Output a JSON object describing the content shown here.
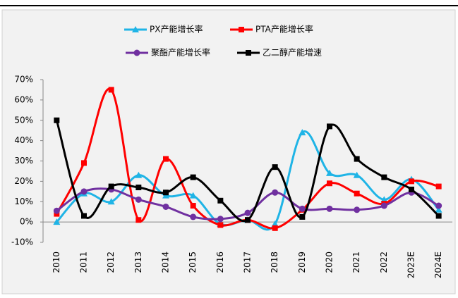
{
  "chart_data": {
    "type": "line",
    "categories": [
      "2010",
      "2011",
      "2012",
      "2013",
      "2014",
      "2015",
      "2016",
      "2017",
      "2018",
      "2019",
      "2020",
      "2021",
      "2022",
      "2023E",
      "2024E"
    ],
    "series": [
      {
        "name": "PX产能增长率",
        "color": "#1fb4e6",
        "marker": "triangle",
        "values": [
          0,
          14,
          10,
          23,
          13,
          13,
          -1,
          1,
          -1,
          44,
          24,
          23,
          11,
          21,
          6
        ]
      },
      {
        "name": "PTA产能增长率",
        "color": "#ff0000",
        "marker": "square",
        "values": [
          4,
          29,
          65,
          1,
          31,
          8,
          -1.5,
          1,
          -3,
          6,
          19,
          14,
          9,
          20,
          17.5
        ]
      },
      {
        "name": "聚酯产能增长率",
        "color": "#7030a0",
        "marker": "circle",
        "values": [
          5.5,
          15,
          16,
          11,
          7.5,
          2.5,
          1.5,
          4.5,
          14.5,
          6.5,
          6.5,
          6,
          8,
          14.5,
          8
        ]
      },
      {
        "name": "乙二醇产能增速",
        "color": "#000000",
        "marker": "square",
        "values": [
          50,
          3,
          17.5,
          17,
          14.5,
          22,
          10.5,
          1,
          27,
          2.5,
          47,
          31,
          22,
          16,
          3
        ]
      }
    ],
    "ylim": [
      -10,
      70
    ],
    "yticks": [
      {
        "value": -10,
        "label": "-10%"
      },
      {
        "value": 0,
        "label": "0%"
      },
      {
        "value": 10,
        "label": "10%"
      },
      {
        "value": 20,
        "label": "20%"
      },
      {
        "value": 30,
        "label": "30%"
      },
      {
        "value": 40,
        "label": "40%"
      },
      {
        "value": 50,
        "label": "50%"
      },
      {
        "value": 60,
        "label": "60%"
      },
      {
        "value": 70,
        "label": "70%"
      }
    ],
    "smooth": true
  }
}
